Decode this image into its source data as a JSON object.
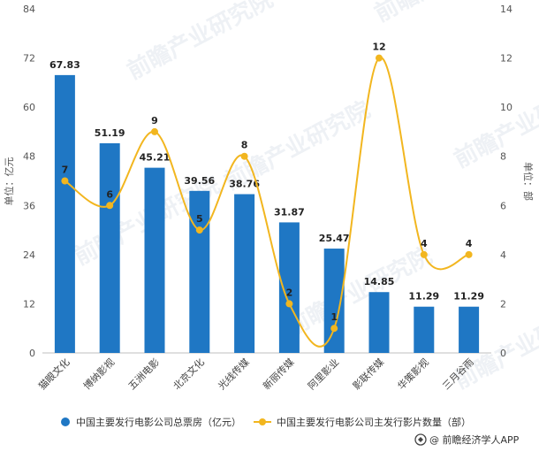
{
  "chart_data": {
    "type": "bar",
    "categories": [
      "猫眼文化",
      "博纳影视",
      "五洲电影",
      "北京文化",
      "光线传媒",
      "新丽传媒",
      "阿里影业",
      "影联传媒",
      "华策影视",
      "三月谷雨"
    ],
    "series": [
      {
        "name": "中国主要发行电影公司总票房（亿元）",
        "type": "bar",
        "axis": "left",
        "values": [
          67.83,
          51.19,
          45.21,
          39.56,
          38.76,
          31.87,
          25.47,
          14.85,
          11.29,
          11.29
        ],
        "labels": [
          "67.83",
          "51.19",
          "45.21",
          "39.56",
          "38.76",
          "31.87",
          "25.47",
          "14.85",
          "11.29",
          "11.29"
        ],
        "color": "#1f77c4"
      },
      {
        "name": "中国主要发行电影公司主发行影片数量（部）",
        "type": "line",
        "axis": "right",
        "values": [
          7,
          6,
          9,
          5,
          8,
          2,
          1,
          12,
          4,
          4
        ],
        "labels": [
          "7",
          "6",
          "9",
          "5",
          "8",
          "2",
          "1",
          "12",
          "4",
          "4"
        ],
        "color": "#f2b61f"
      }
    ],
    "ylabel_left": "单位：亿元",
    "ylabel_right": "单位：部",
    "ylim_left": [
      0,
      84
    ],
    "yticks_left": [
      "0",
      "12",
      "24",
      "36",
      "48",
      "60",
      "72",
      "84"
    ],
    "ylim_right": [
      0,
      14
    ],
    "yticks_right": [
      "0",
      "2",
      "4",
      "6",
      "8",
      "10",
      "12",
      "14"
    ],
    "grid": false,
    "legend_position": "bottom"
  },
  "watermark": "前瞻产业研究院",
  "brand": {
    "text": "@ 前瞻经济学人APP",
    "icon": "qianzhan-logo-icon"
  }
}
